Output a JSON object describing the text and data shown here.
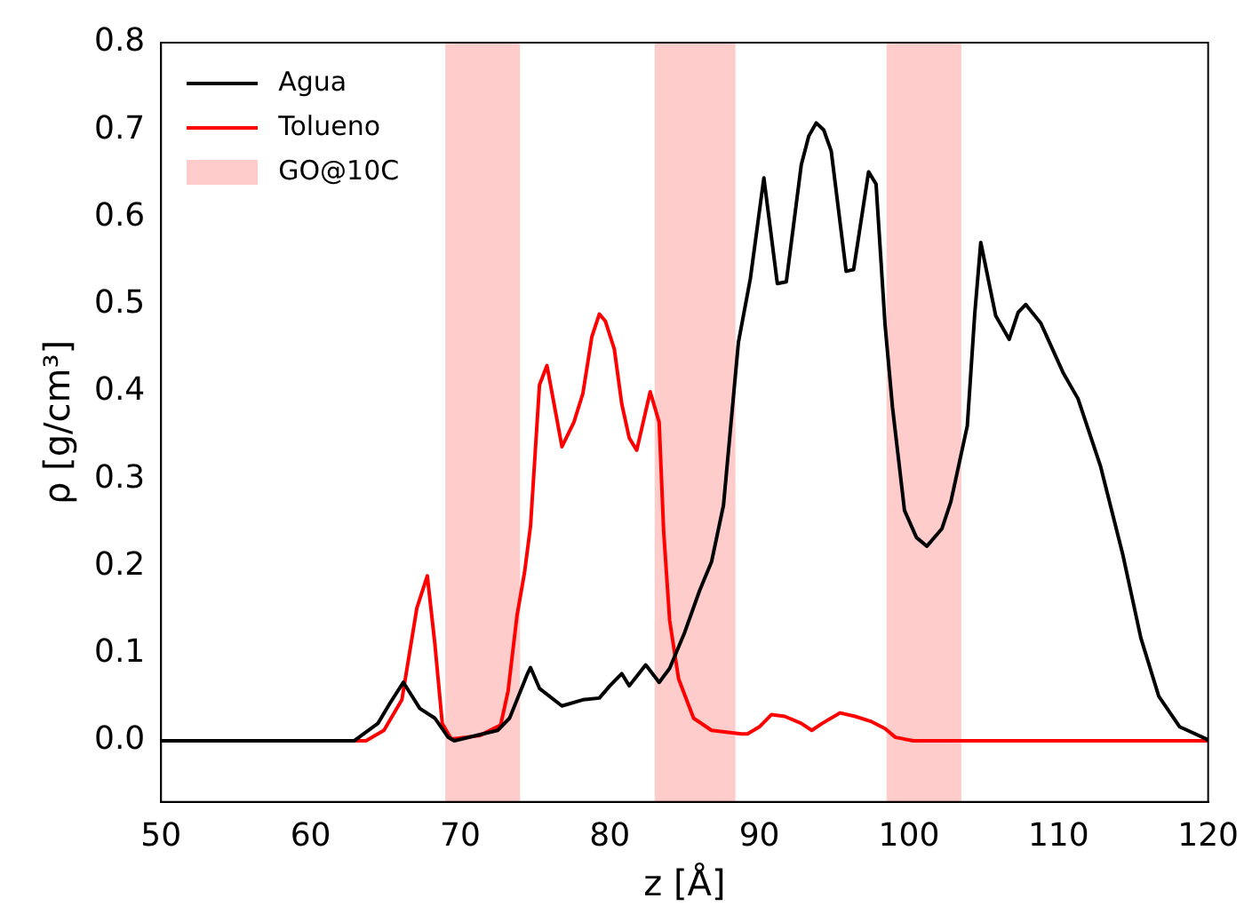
{
  "chart_data": {
    "type": "line",
    "xlabel": "z [Å]",
    "ylabel": "ρ [g/cm³]",
    "xlim": [
      50,
      120
    ],
    "ylim": [
      -0.07,
      0.8
    ],
    "xticks": [
      50,
      60,
      70,
      80,
      90,
      100,
      110,
      120
    ],
    "yticks": [
      {
        "value": 0,
        "label": "0.0"
      },
      0.1,
      0.2,
      0.3,
      0.4,
      0.5,
      0.6,
      0.7,
      0.8
    ],
    "grid": false,
    "legend": "top left",
    "marker": "none",
    "line_style": "solid",
    "series": [
      {
        "name": "Agua",
        "color": "#000000",
        "x": [
          50,
          62.9,
          64.5,
          65.3,
          66.2,
          67.3,
          68.3,
          69.2,
          69.6,
          72.5,
          73.3,
          74.5,
          74.7,
          75.3,
          76.8,
          78.2,
          79.3,
          80.0,
          80.8,
          81.3,
          82.4,
          83.3,
          84.0,
          85.0,
          86.0,
          86.8,
          87.6,
          88.6,
          89.4,
          90.3,
          91.2,
          91.8,
          92.8,
          93.3,
          93.8,
          94.3,
          94.8,
          95.8,
          96.3,
          97.3,
          97.8,
          98.4,
          98.9,
          99.7,
          100.5,
          101.2,
          102.2,
          102.8,
          103.9,
          104.4,
          104.8,
          105.8,
          106.7,
          107.3,
          107.8,
          108.8,
          110.3,
          111.3,
          112.8,
          114.3,
          115.5,
          116.7,
          118.1,
          119.9,
          120
        ],
        "values": [
          0,
          0,
          0.02,
          0.043,
          0.067,
          0.037,
          0.026,
          0.004,
          0,
          0.012,
          0.026,
          0.077,
          0.084,
          0.06,
          0.04,
          0.047,
          0.049,
          0.063,
          0.077,
          0.063,
          0.087,
          0.067,
          0.083,
          0.124,
          0.172,
          0.205,
          0.27,
          0.457,
          0.53,
          0.645,
          0.524,
          0.526,
          0.66,
          0.693,
          0.708,
          0.7,
          0.676,
          0.538,
          0.54,
          0.652,
          0.638,
          0.477,
          0.382,
          0.264,
          0.233,
          0.223,
          0.243,
          0.274,
          0.361,
          0.49,
          0.571,
          0.487,
          0.46,
          0.491,
          0.5,
          0.479,
          0.422,
          0.392,
          0.315,
          0.213,
          0.118,
          0.051,
          0.016,
          0.002,
          0
        ]
      },
      {
        "name": "Tolueno",
        "color": "#ff0000",
        "x": [
          50,
          63.7,
          64.9,
          66.1,
          67.1,
          67.8,
          68.3,
          68.8,
          69.4,
          71.3,
          72.7,
          73.2,
          73.8,
          74.3,
          74.7,
          75.3,
          75.8,
          76.8,
          77.6,
          78.2,
          78.8,
          79.3,
          79.7,
          80.3,
          80.8,
          81.3,
          81.8,
          82.7,
          83.3,
          83.6,
          84.0,
          84.6,
          85.6,
          86.8,
          88.8,
          89.2,
          90.0,
          90.8,
          91.7,
          92.8,
          93.5,
          94.2,
          95.4,
          96.4,
          97.5,
          98.4,
          99.1,
          100.3,
          120
        ],
        "values": [
          0,
          0,
          0.012,
          0.047,
          0.152,
          0.189,
          0.112,
          0.02,
          0.002,
          0.006,
          0.018,
          0.057,
          0.144,
          0.193,
          0.246,
          0.408,
          0.43,
          0.337,
          0.365,
          0.398,
          0.463,
          0.489,
          0.481,
          0.449,
          0.386,
          0.347,
          0.333,
          0.4,
          0.365,
          0.24,
          0.138,
          0.071,
          0.026,
          0.012,
          0.008,
          0.008,
          0.016,
          0.03,
          0.028,
          0.02,
          0.012,
          0.02,
          0.032,
          0.028,
          0.022,
          0.014,
          0.004,
          0,
          0
        ]
      }
    ],
    "bands": [
      {
        "axis": "x",
        "from": 69,
        "to": 74,
        "label": "GO@10C",
        "color": "#ffcccc"
      },
      {
        "axis": "x",
        "from": 83,
        "to": 88.4,
        "label": null,
        "color": "#ffcccc"
      },
      {
        "axis": "x",
        "from": 98.5,
        "to": 103.5,
        "label": null,
        "color": "#ffcccc"
      }
    ]
  }
}
